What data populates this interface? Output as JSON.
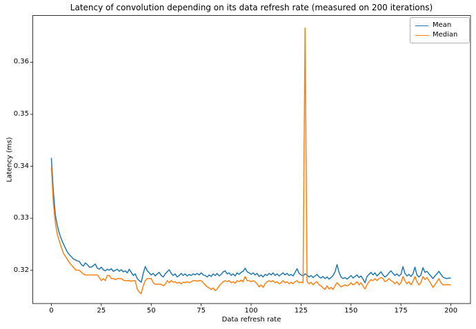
{
  "chart_data": {
    "type": "line",
    "title": "Latency of convolution depending on its data refresh rate (measured on 200 iterations)",
    "xlabel": "Data refresh rate",
    "ylabel": "Latency (ms)",
    "xlim": [
      -9.3,
      209.8
    ],
    "ylim": [
      0.3136,
      0.369
    ],
    "x_ticks": [
      0,
      25,
      50,
      75,
      100,
      125,
      150,
      175,
      200
    ],
    "y_ticks": [
      0.32,
      0.33,
      0.34,
      0.35,
      0.36
    ],
    "grid": false,
    "legend_position": "upper right",
    "x_start": 0,
    "x_step": 1,
    "series": [
      {
        "name": "Mean",
        "color": "#1f77b4",
        "values": [
          0.3416,
          0.3352,
          0.3306,
          0.3286,
          0.3271,
          0.326,
          0.3251,
          0.3243,
          0.3235,
          0.323,
          0.3226,
          0.3222,
          0.322,
          0.3218,
          0.3217,
          0.3211,
          0.3208,
          0.3214,
          0.3211,
          0.3206,
          0.3206,
          0.3209,
          0.3212,
          0.3204,
          0.3202,
          0.3206,
          0.3201,
          0.3199,
          0.3202,
          0.32,
          0.3203,
          0.3198,
          0.32,
          0.3202,
          0.3198,
          0.3201,
          0.3197,
          0.3199,
          0.3195,
          0.3202,
          0.3196,
          0.319,
          0.3193,
          0.3184,
          0.318,
          0.3177,
          0.3194,
          0.3207,
          0.3199,
          0.3195,
          0.3191,
          0.3194,
          0.3189,
          0.3193,
          0.3196,
          0.319,
          0.3187,
          0.3193,
          0.3197,
          0.3201,
          0.3194,
          0.319,
          0.3193,
          0.3187,
          0.319,
          0.3194,
          0.319,
          0.3193,
          0.3189,
          0.3192,
          0.319,
          0.3193,
          0.3191,
          0.3194,
          0.3191,
          0.3195,
          0.3191,
          0.319,
          0.3187,
          0.3191,
          0.3188,
          0.3193,
          0.319,
          0.3194,
          0.3189,
          0.3192,
          0.3197,
          0.3199,
          0.3193,
          0.3195,
          0.319,
          0.3193,
          0.3189,
          0.3195,
          0.3192,
          0.3196,
          0.3198,
          0.3204,
          0.3197,
          0.3195,
          0.3192,
          0.3195,
          0.3191,
          0.3194,
          0.3188,
          0.3191,
          0.3187,
          0.3192,
          0.319,
          0.3194,
          0.3191,
          0.3195,
          0.319,
          0.3193,
          0.3189,
          0.3192,
          0.3195,
          0.3191,
          0.3194,
          0.319,
          0.3192,
          0.3189,
          0.3196,
          0.3203,
          0.3194,
          0.3191,
          0.3189,
          0.3193,
          0.3191,
          0.3187,
          0.319,
          0.3186,
          0.3189,
          0.3192,
          0.3187,
          0.3185,
          0.3188,
          0.3184,
          0.3187,
          0.3183,
          0.3186,
          0.319,
          0.3197,
          0.3211,
          0.3196,
          0.3187,
          0.3184,
          0.3186,
          0.3183,
          0.3186,
          0.319,
          0.3185,
          0.3188,
          0.3191,
          0.3186,
          0.3189,
          0.3183,
          0.3176,
          0.3188,
          0.3192,
          0.3196,
          0.3191,
          0.3195,
          0.3189,
          0.3193,
          0.3197,
          0.3191,
          0.3187,
          0.319,
          0.3195,
          0.3199,
          0.3194,
          0.319,
          0.3193,
          0.3189,
          0.3192,
          0.3207,
          0.3194,
          0.3189,
          0.3192,
          0.3188,
          0.3193,
          0.3206,
          0.3191,
          0.3187,
          0.3191,
          0.3205,
          0.3196,
          0.3198,
          0.3193,
          0.3189,
          0.3184,
          0.3189,
          0.3193,
          0.3198,
          0.3192,
          0.3187,
          0.3185,
          0.3184,
          0.3185,
          0.3185
        ]
      },
      {
        "name": "Median",
        "color": "#ff7f0e",
        "values": [
          0.3398,
          0.333,
          0.3291,
          0.3269,
          0.3256,
          0.3244,
          0.3233,
          0.3227,
          0.3221,
          0.3215,
          0.321,
          0.3206,
          0.3201,
          0.32,
          0.32,
          0.3196,
          0.3193,
          0.3191,
          0.3191,
          0.3191,
          0.3191,
          0.3191,
          0.3191,
          0.3191,
          0.3186,
          0.318,
          0.3184,
          0.318,
          0.319,
          0.319,
          0.3184,
          0.3184,
          0.3182,
          0.3184,
          0.3184,
          0.3184,
          0.3181,
          0.318,
          0.318,
          0.318,
          0.3179,
          0.318,
          0.318,
          0.3164,
          0.3158,
          0.3155,
          0.317,
          0.318,
          0.3184,
          0.3184,
          0.3184,
          0.3176,
          0.3173,
          0.3173,
          0.3173,
          0.3173,
          0.317,
          0.3173,
          0.318,
          0.3176,
          0.318,
          0.3177,
          0.3178,
          0.3175,
          0.3177,
          0.3174,
          0.3177,
          0.3176,
          0.3178,
          0.3176,
          0.3178,
          0.318,
          0.318,
          0.3179,
          0.318,
          0.318,
          0.3176,
          0.3172,
          0.3168,
          0.3166,
          0.3163,
          0.3166,
          0.3161,
          0.3164,
          0.317,
          0.3174,
          0.3178,
          0.318,
          0.3178,
          0.318,
          0.3176,
          0.3178,
          0.3175,
          0.318,
          0.3178,
          0.3181,
          0.3178,
          0.3188,
          0.318,
          0.318,
          0.3178,
          0.318,
          0.3178,
          0.3174,
          0.3168,
          0.3172,
          0.3167,
          0.3174,
          0.3178,
          0.318,
          0.3178,
          0.318,
          0.3176,
          0.3178,
          0.3174,
          0.3176,
          0.318,
          0.3176,
          0.3178,
          0.3174,
          0.3177,
          0.3174,
          0.3178,
          0.318,
          0.3176,
          0.3177,
          0.3176,
          0.3666,
          0.3178,
          0.3174,
          0.3177,
          0.3172,
          0.3176,
          0.3178,
          0.3172,
          0.317,
          0.3166,
          0.3163,
          0.317,
          0.3164,
          0.3167,
          0.3163,
          0.317,
          0.3176,
          0.3172,
          0.3168,
          0.317,
          0.3172,
          0.317,
          0.3172,
          0.3176,
          0.3172,
          0.3174,
          0.3178,
          0.3172,
          0.3176,
          0.317,
          0.3164,
          0.3172,
          0.3178,
          0.3182,
          0.318,
          0.3184,
          0.318,
          0.3184,
          0.3186,
          0.3184,
          0.3178,
          0.318,
          0.3184,
          0.318,
          0.3178,
          0.3174,
          0.3178,
          0.3172,
          0.3176,
          0.3188,
          0.318,
          0.3174,
          0.3178,
          0.3172,
          0.3178,
          0.3188,
          0.3178,
          0.3172,
          0.3176,
          0.3188,
          0.3182,
          0.3186,
          0.318,
          0.3174,
          0.3167,
          0.3172,
          0.3178,
          0.3184,
          0.3176,
          0.3172,
          0.3172,
          0.3172,
          0.3172,
          0.3172
        ]
      }
    ]
  },
  "colors": {
    "mean_line": "#1f77b4",
    "median_line": "#ff7f0e",
    "spine": "#000000",
    "text": "#000000",
    "legend_border": "#b0b0b0",
    "background": "#ffffff"
  }
}
